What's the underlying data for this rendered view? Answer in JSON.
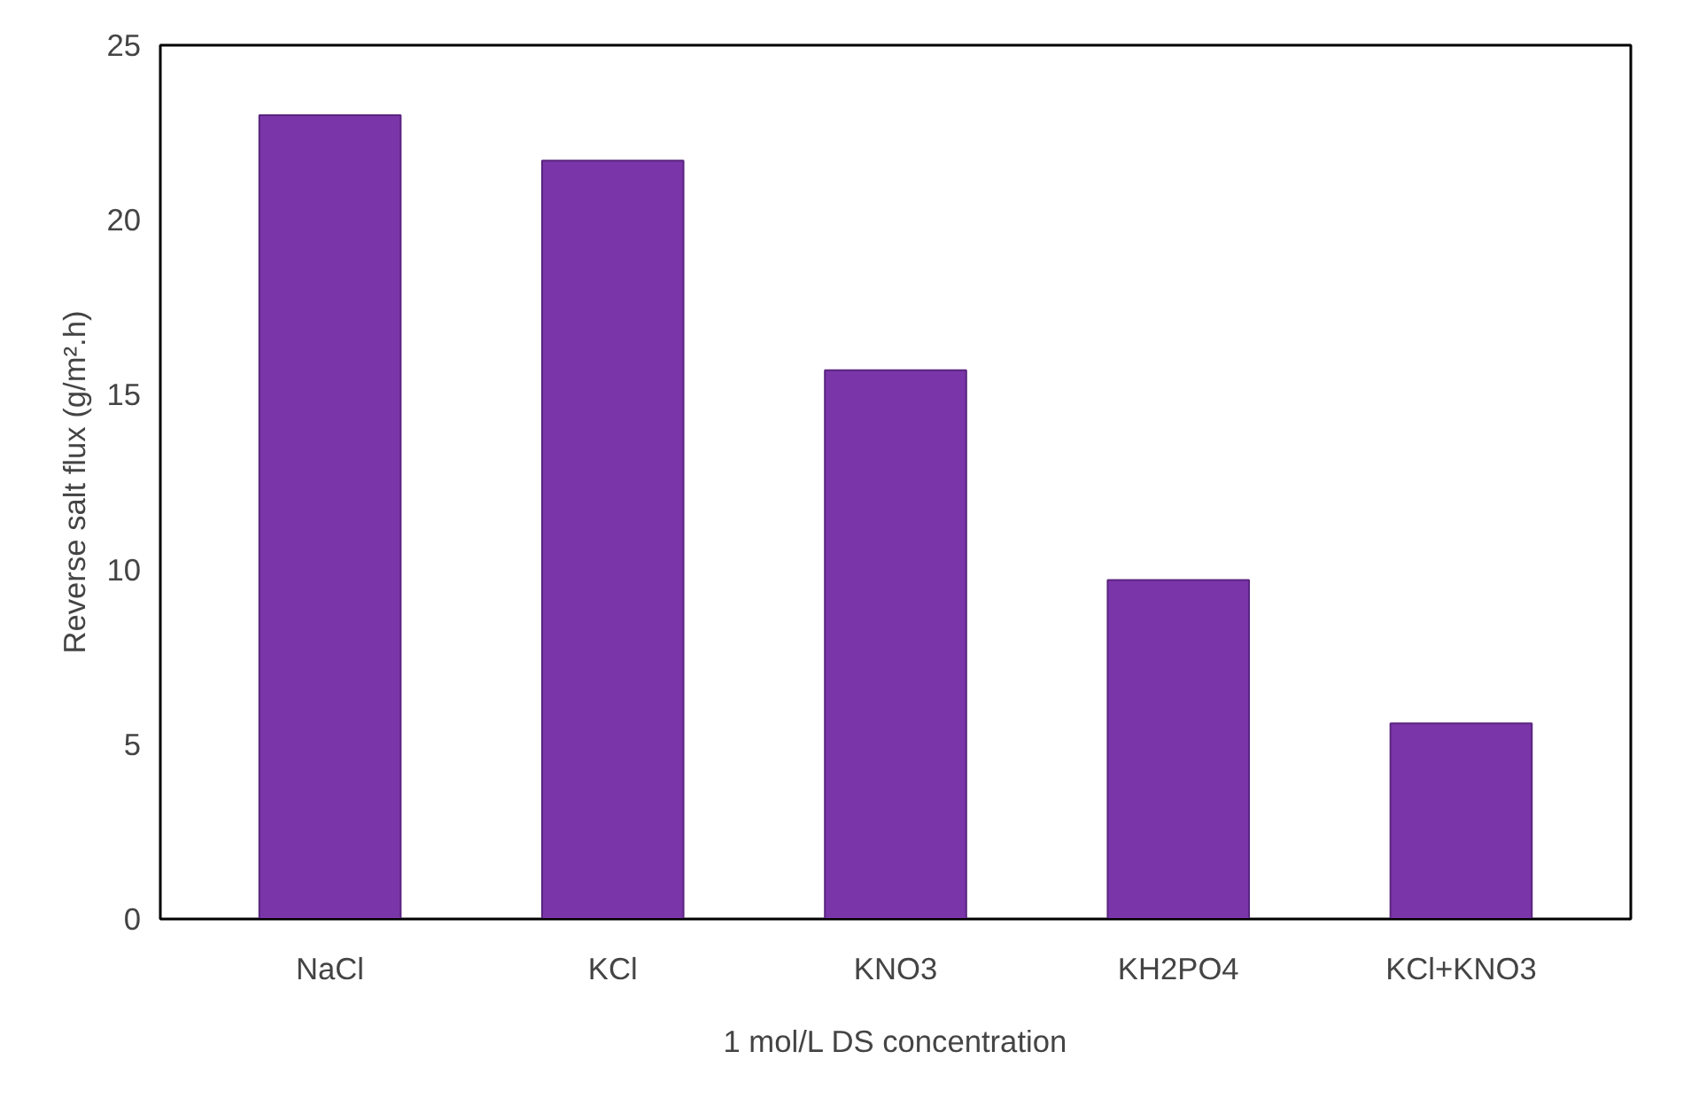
{
  "chart_data": {
    "type": "bar",
    "xlabel": "1 mol/L DS concentration",
    "ylabel": "Reverse salt flux (g/m².h)",
    "categories": [
      "NaCl",
      "KCl",
      "KNO3",
      "KH2PO4",
      "KCl+KNO3"
    ],
    "values": [
      23.0,
      21.7,
      15.7,
      9.7,
      5.6
    ],
    "color": "#7a35a8",
    "ylim": [
      0,
      25
    ],
    "yticks": [
      0,
      5,
      10,
      15,
      20,
      25
    ],
    "grid": false
  }
}
